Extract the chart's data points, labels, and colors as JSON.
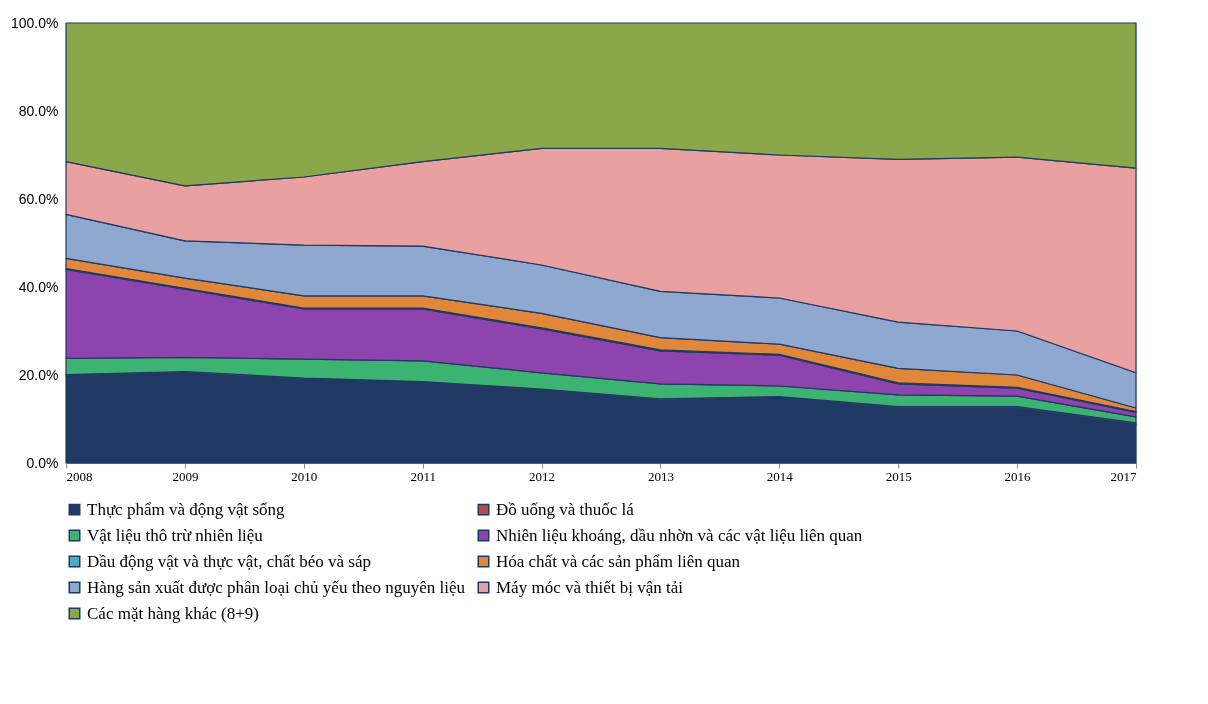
{
  "chart_data": {
    "type": "area",
    "stacked": true,
    "x": [
      2008,
      2009,
      2010,
      2011,
      2012,
      2013,
      2014,
      2015,
      2016,
      2017
    ],
    "xlim": [
      2008,
      2017
    ],
    "xticks": [
      2008,
      2009,
      2010,
      2011,
      2012,
      2013,
      2014,
      2015,
      2016,
      2017
    ],
    "ylim": [
      0,
      100
    ],
    "yticks": [
      {
        "value": 0,
        "label": "0.0%"
      },
      {
        "value": 20,
        "label": "20.0%"
      },
      {
        "value": 40,
        "label": "40.0%"
      },
      {
        "value": 60,
        "label": "60.0%"
      },
      {
        "value": 80,
        "label": "80.0%"
      },
      {
        "value": 100,
        "label": "100.0%"
      }
    ],
    "legend": "bottom",
    "series": [
      {
        "name": "Thực phẩm và động vật sống",
        "color": "#1f3864",
        "values": [
          19.8,
          20.5,
          19,
          18.2,
          16.5,
          14.3,
          14.8,
          12.5,
          12.5,
          8.8
        ]
      },
      {
        "name": "Đồ uống và thuốc lá",
        "color": "#b94a48",
        "values": [
          0.3,
          0.3,
          0.3,
          0.3,
          0.3,
          0.3,
          0.3,
          0.3,
          0.3,
          0.3
        ]
      },
      {
        "name": "Vật liệu thô trừ nhiên liệu",
        "color": "#3cb371",
        "values": [
          3.7,
          3.2,
          4.3,
          4.7,
          3.7,
          3.4,
          2.4,
          2.7,
          2.4,
          1.4
        ]
      },
      {
        "name": "Nhiên liệu khoáng, dầu nhờn và các vật liệu liên quan",
        "color": "#8e44ad",
        "values": [
          20.2,
          15.5,
          11.4,
          11.8,
          10,
          7.5,
          7,
          2.5,
          1.8,
          1
        ]
      },
      {
        "name": "Dầu động vật và thực vật, chất béo và sáp",
        "color": "#4bacc6",
        "values": [
          0.2,
          0.2,
          0.2,
          0.2,
          0.2,
          0.2,
          0.2,
          0.2,
          0.2,
          0.2
        ]
      },
      {
        "name": "Hóa chất và các sản phẩm liên quan",
        "color": "#e0873a",
        "values": [
          2.3,
          2.3,
          2.8,
          2.8,
          3.3,
          2.8,
          2.3,
          3.3,
          2.8,
          0.8
        ]
      },
      {
        "name": "Hàng sản xuất được phân loại chủ yếu theo nguyên liệu",
        "color": "#8fa8d0",
        "values": [
          10,
          8.5,
          11.5,
          11.3,
          11,
          10.5,
          10.5,
          10.5,
          10,
          8
        ]
      },
      {
        "name": "Máy móc và thiết bị vận tải",
        "color": "#e8a0a0",
        "values": [
          12,
          12.5,
          15.5,
          19.2,
          26.5,
          32.5,
          32.5,
          37,
          39.5,
          46.5
        ]
      },
      {
        "name": "Các mặt hàng khác (8+9)",
        "color": "#8aa84a",
        "values": [
          31.5,
          37,
          35,
          31.5,
          28.5,
          28.5,
          30,
          31,
          30.5,
          33
        ]
      }
    ]
  }
}
